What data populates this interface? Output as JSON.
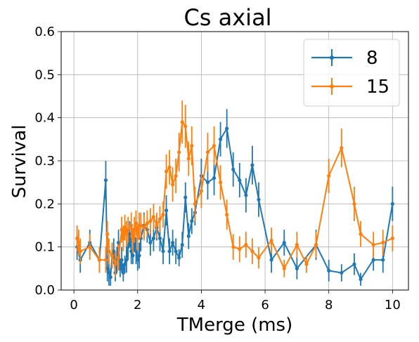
{
  "chart_data": {
    "type": "line",
    "title": "Cs axial",
    "xlabel": "TMerge (ms)",
    "ylabel": "Survival",
    "xlim": [
      -0.4,
      10.5
    ],
    "ylim": [
      0.0,
      0.6
    ],
    "xticks": [
      0,
      2,
      4,
      6,
      8,
      10
    ],
    "yticks": [
      0.0,
      0.1,
      0.2,
      0.3,
      0.4,
      0.5,
      0.6
    ],
    "grid": true,
    "legend_position": "top-right",
    "series": [
      {
        "name": "8",
        "color": "#1f77b4",
        "x": [
          0.1,
          0.2,
          0.5,
          0.8,
          1.0,
          1.05,
          1.1,
          1.15,
          1.2,
          1.25,
          1.3,
          1.35,
          1.4,
          1.45,
          1.5,
          1.55,
          1.6,
          1.65,
          1.7,
          1.75,
          1.8,
          1.85,
          1.9,
          1.95,
          2.0,
          2.05,
          2.1,
          2.2,
          2.3,
          2.4,
          2.5,
          2.6,
          2.7,
          2.8,
          2.9,
          3.0,
          3.1,
          3.2,
          3.3,
          3.4,
          3.5,
          3.6,
          3.7,
          3.8,
          4.0,
          4.2,
          4.4,
          4.6,
          4.8,
          5.0,
          5.2,
          5.4,
          5.6,
          5.8,
          6.2,
          6.6,
          7.0,
          7.6,
          8.0,
          8.4,
          8.8,
          9.0,
          9.4,
          9.7,
          10.0
        ],
        "y": [
          0.1,
          0.07,
          0.11,
          0.07,
          0.255,
          0.05,
          0.04,
          0.03,
          0.08,
          0.09,
          0.04,
          0.07,
          0.11,
          0.05,
          0.07,
          0.04,
          0.06,
          0.07,
          0.1,
          0.13,
          0.09,
          0.08,
          0.12,
          0.09,
          0.07,
          0.08,
          0.12,
          0.15,
          0.14,
          0.11,
          0.12,
          0.145,
          0.12,
          0.09,
          0.185,
          0.09,
          0.11,
          0.09,
          0.075,
          0.105,
          0.215,
          0.125,
          0.16,
          0.18,
          0.265,
          0.25,
          0.26,
          0.35,
          0.375,
          0.28,
          0.255,
          0.22,
          0.29,
          0.21,
          0.07,
          0.11,
          0.05,
          0.105,
          0.045,
          0.04,
          0.06,
          0.025,
          0.07,
          0.07,
          0.2
        ],
        "err": [
          0.03,
          0.03,
          0.03,
          0.03,
          0.045,
          0.03,
          0.03,
          0.02,
          0.03,
          0.03,
          0.02,
          0.03,
          0.03,
          0.02,
          0.03,
          0.02,
          0.02,
          0.03,
          0.03,
          0.03,
          0.03,
          0.02,
          0.03,
          0.03,
          0.025,
          0.03,
          0.03,
          0.03,
          0.03,
          0.03,
          0.03,
          0.03,
          0.03,
          0.03,
          0.035,
          0.03,
          0.03,
          0.03,
          0.02,
          0.03,
          0.035,
          0.03,
          0.03,
          0.03,
          0.04,
          0.04,
          0.04,
          0.04,
          0.045,
          0.04,
          0.04,
          0.04,
          0.045,
          0.04,
          0.03,
          0.03,
          0.025,
          0.035,
          0.025,
          0.02,
          0.025,
          0.015,
          0.025,
          0.03,
          0.04
        ]
      },
      {
        "name": "15",
        "color": "#ff7f0e",
        "x": [
          0.1,
          0.15,
          0.2,
          0.5,
          0.8,
          1.0,
          1.05,
          1.1,
          1.2,
          1.3,
          1.4,
          1.5,
          1.55,
          1.6,
          1.65,
          1.7,
          1.8,
          1.85,
          1.9,
          1.95,
          2.0,
          2.05,
          2.1,
          2.2,
          2.3,
          2.4,
          2.5,
          2.6,
          2.7,
          2.8,
          2.9,
          3.0,
          3.1,
          3.2,
          3.3,
          3.4,
          3.5,
          3.6,
          3.7,
          3.8,
          4.0,
          4.2,
          4.4,
          4.6,
          4.8,
          5.0,
          5.2,
          5.4,
          5.6,
          5.8,
          6.2,
          6.6,
          7.0,
          7.3,
          7.6,
          8.0,
          8.4,
          8.8,
          9.0,
          9.4,
          9.7,
          10.0
        ],
        "y": [
          0.12,
          0.11,
          0.09,
          0.1,
          0.07,
          0.07,
          0.13,
          0.09,
          0.08,
          0.06,
          0.075,
          0.14,
          0.12,
          0.145,
          0.13,
          0.14,
          0.15,
          0.115,
          0.14,
          0.155,
          0.12,
          0.15,
          0.15,
          0.145,
          0.155,
          0.16,
          0.17,
          0.15,
          0.165,
          0.175,
          0.275,
          0.285,
          0.245,
          0.265,
          0.32,
          0.39,
          0.38,
          0.305,
          0.335,
          0.2,
          0.23,
          0.32,
          0.335,
          0.25,
          0.175,
          0.1,
          0.095,
          0.105,
          0.09,
          0.075,
          0.115,
          0.05,
          0.105,
          0.06,
          0.105,
          0.265,
          0.33,
          0.2,
          0.13,
          0.105,
          0.11,
          0.12
        ],
        "err": [
          0.03,
          0.03,
          0.03,
          0.03,
          0.03,
          0.03,
          0.03,
          0.03,
          0.03,
          0.03,
          0.03,
          0.03,
          0.03,
          0.03,
          0.03,
          0.03,
          0.03,
          0.03,
          0.03,
          0.03,
          0.03,
          0.03,
          0.03,
          0.03,
          0.03,
          0.03,
          0.03,
          0.03,
          0.03,
          0.03,
          0.04,
          0.04,
          0.04,
          0.04,
          0.045,
          0.05,
          0.05,
          0.04,
          0.045,
          0.04,
          0.04,
          0.045,
          0.045,
          0.04,
          0.035,
          0.03,
          0.03,
          0.03,
          0.03,
          0.025,
          0.03,
          0.02,
          0.03,
          0.02,
          0.03,
          0.04,
          0.045,
          0.04,
          0.03,
          0.03,
          0.03,
          0.03
        ]
      }
    ]
  }
}
